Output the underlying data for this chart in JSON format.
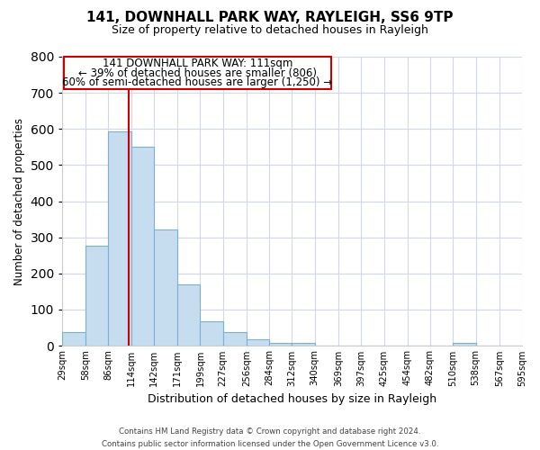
{
  "title": "141, DOWNHALL PARK WAY, RAYLEIGH, SS6 9TP",
  "subtitle": "Size of property relative to detached houses in Rayleigh",
  "xlabel": "Distribution of detached houses by size in Rayleigh",
  "ylabel": "Number of detached properties",
  "bar_edges": [
    29,
    58,
    86,
    114,
    142,
    171,
    199,
    227,
    256,
    284,
    312,
    340,
    369,
    397,
    425,
    454,
    482,
    510,
    538,
    567,
    595
  ],
  "bar_heights": [
    38,
    278,
    592,
    550,
    322,
    170,
    67,
    38,
    18,
    8,
    8,
    0,
    0,
    0,
    0,
    0,
    0,
    8,
    0,
    0,
    0
  ],
  "bar_color": "#c6ddef",
  "bar_edge_color": "#7bafd4",
  "property_line_x": 111,
  "property_line_color": "#cc0000",
  "ylim": [
    0,
    800
  ],
  "yticks": [
    0,
    100,
    200,
    300,
    400,
    500,
    600,
    700,
    800
  ],
  "annotation_text_line1": "141 DOWNHALL PARK WAY: 111sqm",
  "annotation_text_line2": "← 39% of detached houses are smaller (806)",
  "annotation_text_line3": "60% of semi-detached houses are larger (1,250) →",
  "footer_line1": "Contains HM Land Registry data © Crown copyright and database right 2024.",
  "footer_line2": "Contains public sector information licensed under the Open Government Licence v3.0.",
  "grid_color": "#d0d8e8",
  "background_color": "#ffffff",
  "tick_labels": [
    "29sqm",
    "58sqm",
    "86sqm",
    "114sqm",
    "142sqm",
    "171sqm",
    "199sqm",
    "227sqm",
    "256sqm",
    "284sqm",
    "312sqm",
    "340sqm",
    "369sqm",
    "397sqm",
    "425sqm",
    "454sqm",
    "482sqm",
    "510sqm",
    "538sqm",
    "567sqm",
    "595sqm"
  ]
}
